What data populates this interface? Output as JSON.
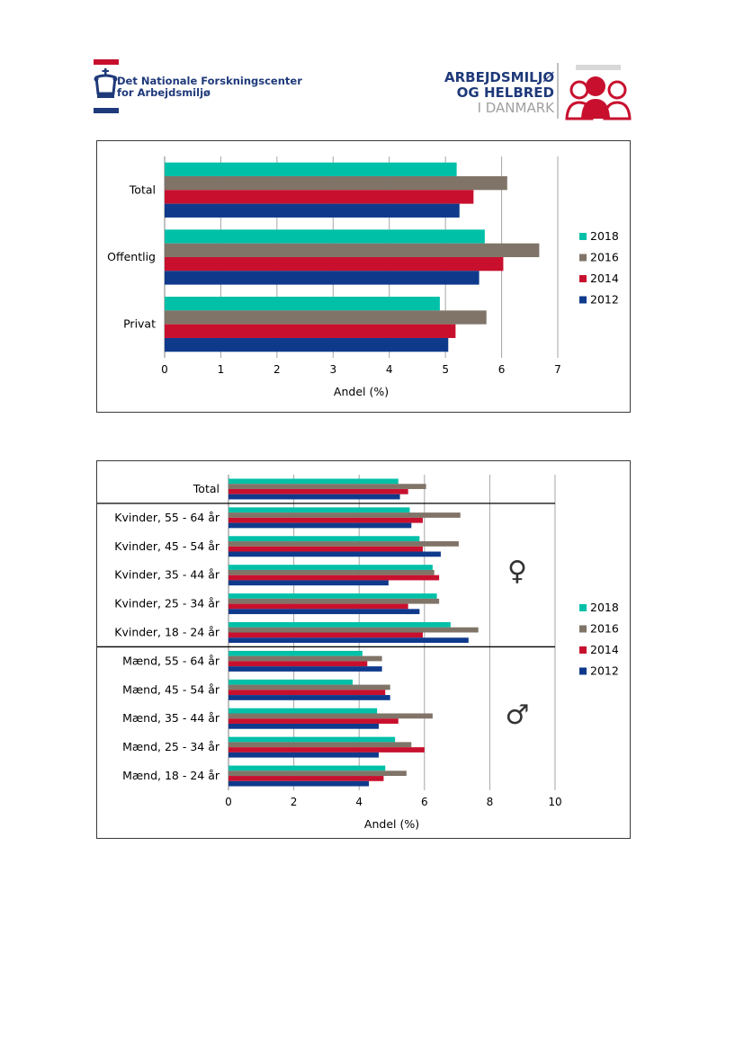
{
  "header": {
    "left_logo": {
      "line1": "Det Nationale Forskningscenter",
      "line2": "for Arbejdsmiljø",
      "icon": "crown-icon"
    },
    "right_logo": {
      "line1": "ARBEJDSMILJØ",
      "line2": "OG HELBRED",
      "line3": "I DANMARK",
      "icon": "people-icon"
    }
  },
  "colors": {
    "2018": "#00c0a8",
    "2016": "#807468",
    "2014": "#c8102e",
    "2012": "#0f3a8c",
    "grid": "#a6a6a6"
  },
  "chart_data": [
    {
      "type": "bar",
      "orientation": "horizontal",
      "categories": [
        "Total",
        "Offentlig",
        "Privat"
      ],
      "series": [
        {
          "name": "2018",
          "values": [
            5.2,
            5.7,
            4.9
          ]
        },
        {
          "name": "2016",
          "values": [
            6.1,
            6.67,
            5.73
          ]
        },
        {
          "name": "2014",
          "values": [
            5.5,
            6.03,
            5.18
          ]
        },
        {
          "name": "2012",
          "values": [
            5.25,
            5.6,
            5.05
          ]
        }
      ],
      "xlabel": "Andel (%)",
      "xlim": [
        0,
        7
      ],
      "xticks": [
        "0",
        "1",
        "2",
        "3",
        "4",
        "5",
        "6",
        "7"
      ],
      "grid": true,
      "legend": "right"
    },
    {
      "type": "bar",
      "orientation": "horizontal",
      "categories": [
        "Total",
        "Kvinder, 55 - 64 år",
        "Kvinder, 45 - 54 år",
        "Kvinder, 35 - 44 år",
        "Kvinder, 25 - 34 år",
        "Kvinder, 18 - 24 år",
        "Mænd, 55 - 64 år",
        "Mænd, 45 - 54 år",
        "Mænd, 35 - 44 år",
        "Mænd, 25 - 34 år",
        "Mænd, 18 - 24 år"
      ],
      "series": [
        {
          "name": "2018",
          "values": [
            5.2,
            5.55,
            5.85,
            6.25,
            6.38,
            6.8,
            4.1,
            3.8,
            4.55,
            5.1,
            4.8
          ]
        },
        {
          "name": "2016",
          "values": [
            6.05,
            7.1,
            7.05,
            6.3,
            6.45,
            7.65,
            4.7,
            4.95,
            6.25,
            5.6,
            5.45
          ]
        },
        {
          "name": "2014",
          "values": [
            5.5,
            5.95,
            5.95,
            6.45,
            5.5,
            5.95,
            4.25,
            4.8,
            5.2,
            6.0,
            4.75
          ]
        },
        {
          "name": "2012",
          "values": [
            5.25,
            5.6,
            6.5,
            4.9,
            5.85,
            7.35,
            4.7,
            4.95,
            4.6,
            4.6,
            4.3
          ]
        }
      ],
      "xlabel": "Andel (%)",
      "xlim": [
        0,
        10
      ],
      "xticks": [
        "0",
        "2",
        "4",
        "6",
        "8",
        "10"
      ],
      "grid": true,
      "legend": "right",
      "annotations": [
        "♀",
        "♂"
      ]
    }
  ]
}
